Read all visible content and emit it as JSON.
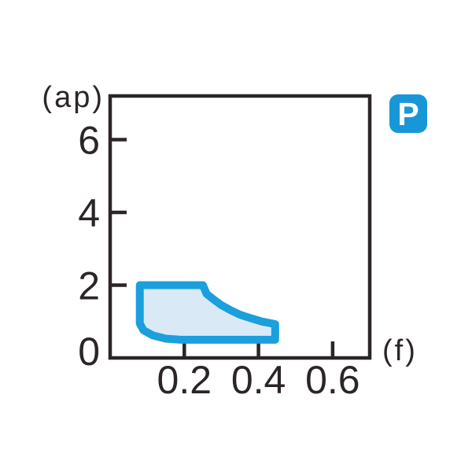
{
  "chart_data": {
    "type": "area",
    "title": "",
    "xlabel": "(f)",
    "ylabel": "(ap)",
    "xlim": [
      0,
      0.7
    ],
    "ylim": [
      0,
      7.2
    ],
    "grid": false,
    "legend": null,
    "x_ticks": [
      {
        "value": 0.2,
        "label": "0.2"
      },
      {
        "value": 0.4,
        "label": "0.4"
      },
      {
        "value": 0.6,
        "label": "0.6"
      }
    ],
    "y_ticks": [
      {
        "value": 2,
        "label": "2"
      },
      {
        "value": 4,
        "label": "4"
      },
      {
        "value": 6,
        "label": "6"
      }
    ],
    "origin_label": "0",
    "axis_color": "#2b2526",
    "text_color": "#2b2526",
    "region": {
      "name": "recommended-cutting-range",
      "f_range": [
        0.08,
        0.45
      ],
      "ap_range": [
        0.5,
        2.0
      ],
      "boundary_points_f_ap": [
        [
          0.08,
          2.0
        ],
        [
          0.25,
          2.0
        ],
        [
          0.26,
          1.76
        ],
        [
          0.28,
          1.6
        ],
        [
          0.3,
          1.45
        ],
        [
          0.325,
          1.31
        ],
        [
          0.35,
          1.19
        ],
        [
          0.38,
          1.09
        ],
        [
          0.41,
          1.0
        ],
        [
          0.445,
          0.93
        ],
        [
          0.445,
          0.5
        ],
        [
          0.19,
          0.5
        ],
        [
          0.15,
          0.53
        ],
        [
          0.115,
          0.62
        ],
        [
          0.09,
          0.76
        ],
        [
          0.08,
          0.95
        ]
      ],
      "fill_color": "#d9eaf6",
      "stroke_color": "#1b9fdd"
    },
    "badge": {
      "label": "P",
      "bg_color": "#1797d8",
      "text_color": "#ffffff"
    }
  }
}
